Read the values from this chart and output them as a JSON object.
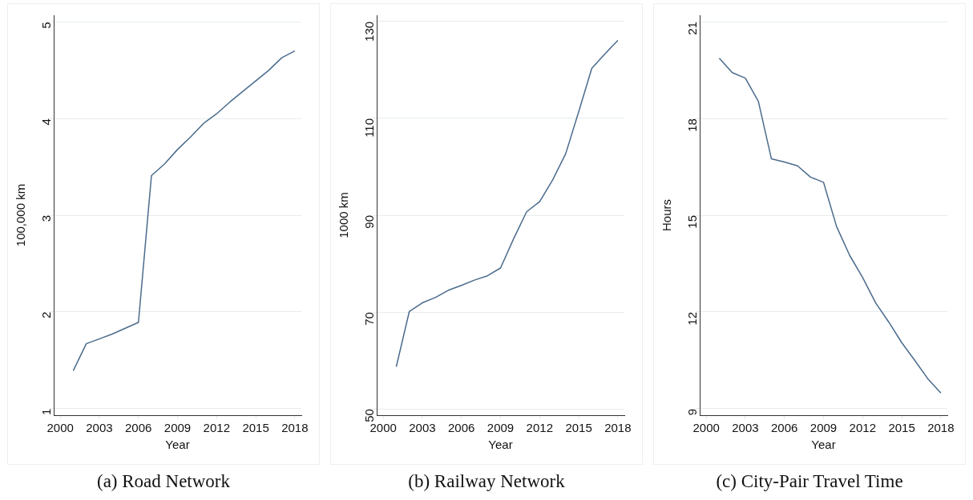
{
  "chart_data": [
    {
      "type": "line",
      "title": "(a) Road Network",
      "xlabel": "Year",
      "ylabel": "100,000 km",
      "x": [
        2001,
        2002,
        2003,
        2004,
        2005,
        2006,
        2007,
        2008,
        2009,
        2010,
        2011,
        2012,
        2013,
        2014,
        2015,
        2016,
        2017,
        2018
      ],
      "series": [
        {
          "color": "#4a6b8c",
          "values": [
            1.39,
            1.67,
            1.72,
            1.77,
            1.83,
            1.89,
            3.41,
            3.53,
            3.68,
            3.81,
            3.95,
            4.05,
            4.17,
            4.28,
            4.39,
            4.5,
            4.63,
            4.7
          ]
        }
      ],
      "xlim": [
        1999.5,
        2018.5
      ],
      "xticks": [
        2000,
        2003,
        2006,
        2009,
        2012,
        2015,
        2018
      ],
      "ylim": [
        0.93,
        5.07
      ],
      "yticks": [
        1,
        2,
        3,
        4,
        5
      ],
      "grid": "y",
      "legend": false,
      "marker": "none",
      "line_style": "solid"
    },
    {
      "type": "line",
      "title": "(b) Railway Network",
      "xlabel": "Year",
      "ylabel": "1000 km",
      "x": [
        2001,
        2002,
        2003,
        2004,
        2005,
        2006,
        2007,
        2008,
        2009,
        2010,
        2011,
        2012,
        2013,
        2014,
        2015,
        2016,
        2017,
        2018
      ],
      "series": [
        {
          "color": "#4a6b8c",
          "values": [
            58.7,
            70.1,
            71.9,
            73.0,
            74.5,
            75.5,
            76.6,
            77.5,
            79.1,
            85.1,
            90.7,
            92.8,
            97.3,
            102.7,
            111.4,
            120.3,
            123.3,
            126.1
          ]
        }
      ],
      "xlim": [
        1999.5,
        2018.5
      ],
      "xticks": [
        2000,
        2003,
        2006,
        2009,
        2012,
        2015,
        2018
      ],
      "ylim": [
        48.7,
        131.3
      ],
      "yticks": [
        50,
        70,
        90,
        110,
        130
      ],
      "grid": "y",
      "legend": false,
      "marker": "none",
      "line_style": "solid"
    },
    {
      "type": "line",
      "title": "(c) City-Pair Travel Time",
      "xlabel": "Year",
      "ylabel": "Hours",
      "x": [
        2001,
        2002,
        2003,
        2004,
        2005,
        2006,
        2007,
        2008,
        2009,
        2010,
        2011,
        2012,
        2013,
        2014,
        2015,
        2016,
        2017,
        2018
      ],
      "series": [
        {
          "color": "#4a6b8c",
          "values": [
            19.87,
            19.42,
            19.25,
            18.53,
            16.75,
            16.65,
            16.53,
            16.18,
            16.02,
            14.65,
            13.76,
            13.07,
            12.28,
            11.69,
            11.05,
            10.5,
            9.93,
            9.49
          ]
        }
      ],
      "xlim": [
        1999.5,
        2018.5
      ],
      "xticks": [
        2000,
        2003,
        2006,
        2009,
        2012,
        2015,
        2018
      ],
      "ylim": [
        8.8,
        21.2
      ],
      "yticks": [
        9,
        12,
        15,
        18,
        21
      ],
      "grid": "y",
      "legend": false,
      "marker": "none",
      "line_style": "solid"
    }
  ]
}
